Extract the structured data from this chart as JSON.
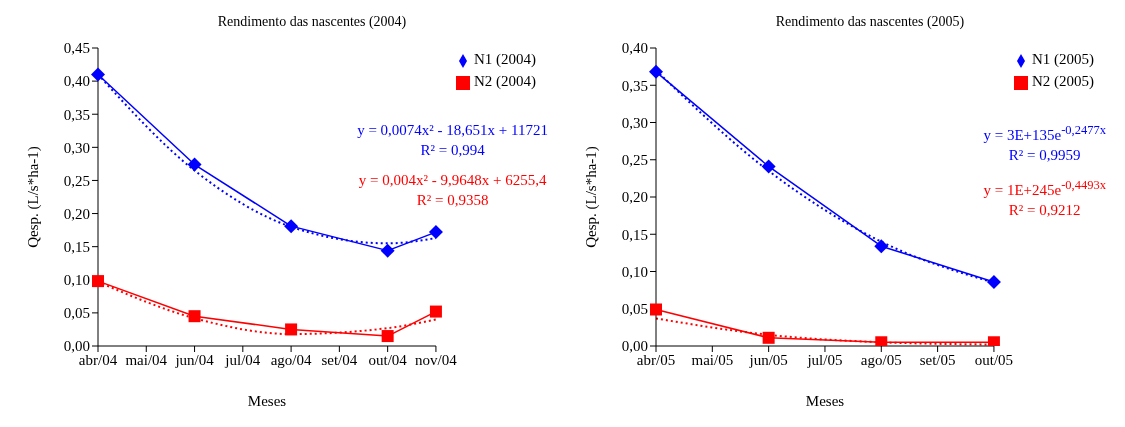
{
  "chart_data": [
    {
      "type": "line",
      "title": "Rendimento das nascentes (2004)",
      "xlabel": "Meses",
      "ylabel": "Qesp. (L/s*ha-1)",
      "categories": [
        "abr/04",
        "mai/04",
        "jun/04",
        "jul/04",
        "ago/04",
        "set/04",
        "out/04",
        "nov/04"
      ],
      "series": [
        {
          "name": "N1 (2004)",
          "color": "#0000ff",
          "marker": "diamond",
          "values": [
            0.41,
            null,
            0.274,
            null,
            0.181,
            null,
            0.144,
            0.172
          ]
        },
        {
          "name": "N2 (2004)",
          "color": "#ff0000",
          "marker": "square",
          "values": [
            0.098,
            null,
            0.045,
            null,
            0.025,
            null,
            0.015,
            0.052
          ]
        },
        {
          "color": "#0000ff",
          "marker": "none",
          "line_style": "dotted",
          "values": [
            0.41,
            null,
            0.265,
            null,
            0.18,
            null,
            0.155,
            0.163
          ]
        },
        {
          "color": "#ff0000",
          "marker": "none",
          "line_style": "dotted",
          "values": [
            0.097,
            null,
            0.042,
            null,
            0.018,
            null,
            0.027,
            0.04
          ]
        }
      ],
      "ylim": [
        0,
        0.45
      ],
      "yticks": [
        {
          "value": 0,
          "label": "0,00"
        },
        {
          "value": 0.05,
          "label": "0,05"
        },
        {
          "value": 0.1,
          "label": "0,10"
        },
        {
          "value": 0.15,
          "label": "0,15"
        },
        {
          "value": 0.2,
          "label": "0,20"
        },
        {
          "value": 0.25,
          "label": "0,25"
        },
        {
          "value": 0.3,
          "label": "0,30"
        },
        {
          "value": 0.35,
          "label": "0,35"
        },
        {
          "value": 0.4,
          "label": "0,40"
        },
        {
          "value": 0.45,
          "label": "0,45"
        }
      ],
      "grid": false,
      "legend": "top right",
      "line_style": "solid",
      "annotations": [
        "y = 0,0074x² - 18,651x + 11721",
        "R² = 0,994",
        "y = 0,004x² - 9,9648x + 6255,4",
        "R² = 0,9358"
      ]
    },
    {
      "type": "line",
      "title": "Rendimento das nascentes (2005)",
      "xlabel": "Meses",
      "ylabel": "Qesp. (L/s*ha-1)",
      "categories": [
        "abr/05",
        "mai/05",
        "jun/05",
        "jul/05",
        "ago/05",
        "set/05",
        "out/05"
      ],
      "series": [
        {
          "name": "N1 (2005)",
          "color": "#0000ff",
          "marker": "diamond",
          "values": [
            0.368,
            null,
            0.241,
            null,
            0.134,
            null,
            0.086
          ]
        },
        {
          "name": "N2 (2005)",
          "color": "#ff0000",
          "marker": "square",
          "values": [
            0.049,
            null,
            0.011,
            null,
            0.005,
            null,
            0.005
          ]
        },
        {
          "color": "#0000ff",
          "marker": "none",
          "line_style": "dotted",
          "values": [
            0.37,
            null,
            0.235,
            null,
            0.14,
            null,
            0.085
          ]
        },
        {
          "color": "#ff0000",
          "marker": "none",
          "line_style": "dotted",
          "values": [
            0.037,
            null,
            0.015,
            null,
            0.005,
            null,
            0.002
          ]
        }
      ],
      "ylim": [
        0,
        0.4
      ],
      "yticks": [
        {
          "value": 0,
          "label": "0,00"
        },
        {
          "value": 0.05,
          "label": "0,05"
        },
        {
          "value": 0.1,
          "label": "0,10"
        },
        {
          "value": 0.15,
          "label": "0,15"
        },
        {
          "value": 0.2,
          "label": "0,20"
        },
        {
          "value": 0.25,
          "label": "0,25"
        },
        {
          "value": 0.3,
          "label": "0,30"
        },
        {
          "value": 0.35,
          "label": "0,35"
        },
        {
          "value": 0.4,
          "label": "0,40"
        }
      ],
      "grid": false,
      "legend": "top right",
      "line_style": "solid",
      "annotations": [
        "y = 3E+135e$^{-0,2477x}$",
        "R² = 0,9959",
        "y = 1E+245e$^{-0,4493x}$",
        "R² = 0,9212"
      ]
    }
  ]
}
